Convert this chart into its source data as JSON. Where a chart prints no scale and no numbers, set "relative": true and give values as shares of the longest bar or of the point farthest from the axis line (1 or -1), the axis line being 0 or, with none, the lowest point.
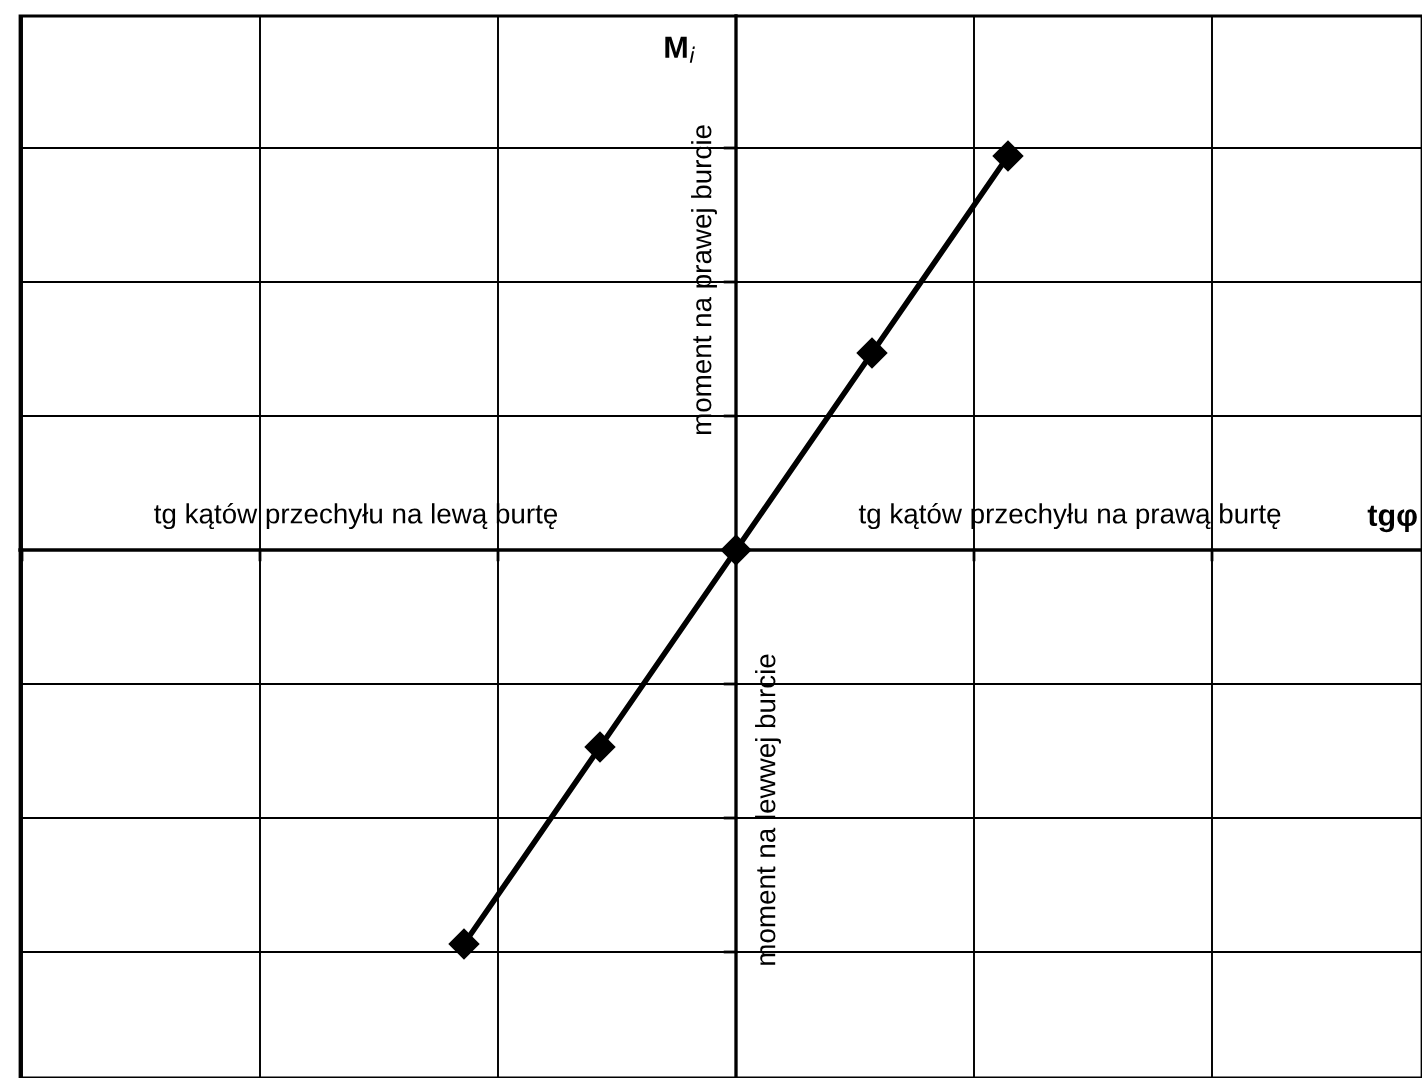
{
  "chart_data": {
    "type": "line",
    "relative": true,
    "categories": [
      null,
      null,
      null,
      null,
      null
    ],
    "series": [
      {
        "color": "#000000",
        "values": [
          -1,
          -0.5,
          0,
          0.5,
          1
        ]
      }
    ],
    "marker": "diamond",
    "line_style": "solid",
    "grid": true,
    "ylabel": "M$_{i}$",
    "annotations": [
      "tg kątów przechyłu na lewą burtę",
      "tg kątów przechyłu na prawą burtę",
      "moment na prawej burcie",
      "moment na lewwej burcie",
      "tgφ"
    ]
  }
}
